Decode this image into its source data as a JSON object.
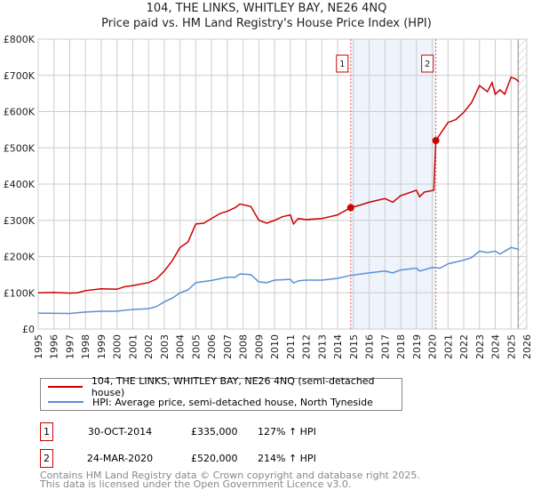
{
  "title": "104, THE LINKS, WHITLEY BAY, NE26 4NQ",
  "subtitle": "Price paid vs. HM Land Registry's House Price Index (HPI)",
  "chart_data": {
    "type": "line",
    "title": "104, THE LINKS, WHITLEY BAY, NE26 4NQ",
    "subtitle": "Price paid vs. HM Land Registry's House Price Index (HPI)",
    "xlim": [
      1995,
      2026
    ],
    "ylim": [
      0,
      800000
    ],
    "x_ticks": [
      "1995",
      "1996",
      "1997",
      "1998",
      "1999",
      "2000",
      "2001",
      "2002",
      "2003",
      "2004",
      "2005",
      "2006",
      "2007",
      "2008",
      "2009",
      "2010",
      "2011",
      "2012",
      "2013",
      "2014",
      "2015",
      "2016",
      "2017",
      "2018",
      "2019",
      "2020",
      "2021",
      "2022",
      "2023",
      "2024",
      "2025",
      "2026"
    ],
    "y_ticks": [
      {
        "v": 0,
        "l": "£0"
      },
      {
        "v": 100000,
        "l": "£100K"
      },
      {
        "v": 200000,
        "l": "£200K"
      },
      {
        "v": 300000,
        "l": "£300K"
      },
      {
        "v": 400000,
        "l": "£400K"
      },
      {
        "v": 500000,
        "l": "£500K"
      },
      {
        "v": 600000,
        "l": "£600K"
      },
      {
        "v": 700000,
        "l": "£700K"
      },
      {
        "v": 800000,
        "l": "£800K"
      }
    ],
    "grid": true,
    "shaded_range": [
      2014.83,
      2020.23
    ],
    "hatched_from": 2025.45,
    "series": [
      {
        "name": "104, THE LINKS, WHITLEY BAY, NE26 4NQ (semi-detached house)",
        "color": "#cc0000",
        "x": [
          1995,
          1996,
          1997,
          1997.5,
          1998,
          1999,
          2000,
          2000.5,
          2001,
          2002,
          2002.5,
          2003,
          2003.5,
          2004,
          2004.5,
          2005,
          2005.5,
          2006,
          2006.5,
          2007,
          2007.5,
          2007.8,
          2008.5,
          2009,
          2009.5,
          2010,
          2010.5,
          2011,
          2011.2,
          2011.5,
          2012,
          2013,
          2013.5,
          2014,
          2014.83,
          2015.5,
          2016,
          2017,
          2017.5,
          2018,
          2019,
          2019.2,
          2019.5,
          2020.1,
          2020.23,
          2021,
          2021.5,
          2022,
          2022.5,
          2023,
          2023.5,
          2023.8,
          2024,
          2024.3,
          2024.6,
          2025,
          2025.3,
          2025.5
        ],
        "y": [
          100000,
          101000,
          99000,
          100000,
          106000,
          111000,
          110000,
          117000,
          120000,
          128000,
          138000,
          160000,
          188000,
          225000,
          240000,
          290000,
          292000,
          305000,
          318000,
          325000,
          335000,
          345000,
          338000,
          300000,
          292000,
          300000,
          310000,
          315000,
          290000,
          305000,
          302000,
          305000,
          310000,
          315000,
          335000,
          343000,
          350000,
          360000,
          350000,
          368000,
          383000,
          365000,
          378000,
          383000,
          520000,
          570000,
          578000,
          598000,
          625000,
          672000,
          655000,
          680000,
          648000,
          660000,
          648000,
          695000,
          690000,
          682000
        ]
      },
      {
        "name": "HPI: Average price, semi-detached house, North Tyneside",
        "color": "#5b8fd6",
        "x": [
          1995,
          1997,
          1998,
          1999,
          2000,
          2000.5,
          2001,
          2002,
          2002.5,
          2003,
          2003.5,
          2004,
          2004.5,
          2005,
          2006,
          2007,
          2007.5,
          2007.8,
          2008.5,
          2009,
          2009.5,
          2010,
          2011,
          2011.2,
          2011.5,
          2012,
          2013,
          2014,
          2014.83,
          2016,
          2017,
          2017.5,
          2018,
          2019,
          2019.2,
          2020,
          2020.5,
          2021,
          2022,
          2022.5,
          2023,
          2023.5,
          2024,
          2024.3,
          2025,
          2025.5
        ],
        "y": [
          44000,
          43000,
          47000,
          49000,
          49000,
          52000,
          54000,
          56000,
          62000,
          75000,
          85000,
          100000,
          108000,
          128000,
          134000,
          143000,
          143000,
          152000,
          150000,
          130000,
          128000,
          135000,
          137000,
          127000,
          133000,
          135000,
          135000,
          140000,
          148000,
          155000,
          160000,
          155000,
          163000,
          168000,
          160000,
          170000,
          168000,
          180000,
          190000,
          197000,
          215000,
          211000,
          215000,
          207000,
          225000,
          220000
        ]
      }
    ],
    "sales": [
      {
        "label": "1",
        "x": 2014.83,
        "y": 335000,
        "date": "30-OCT-2014",
        "price": "£335,000",
        "hpi": "127% ↑ HPI"
      },
      {
        "label": "2",
        "x": 2020.23,
        "y": 520000,
        "date": "24-MAR-2020",
        "price": "£520,000",
        "hpi": "214% ↑ HPI"
      }
    ]
  },
  "footer": {
    "line1": "Contains HM Land Registry data © Crown copyright and database right 2025.",
    "line2": "This data is licensed under the Open Government Licence v3.0."
  }
}
